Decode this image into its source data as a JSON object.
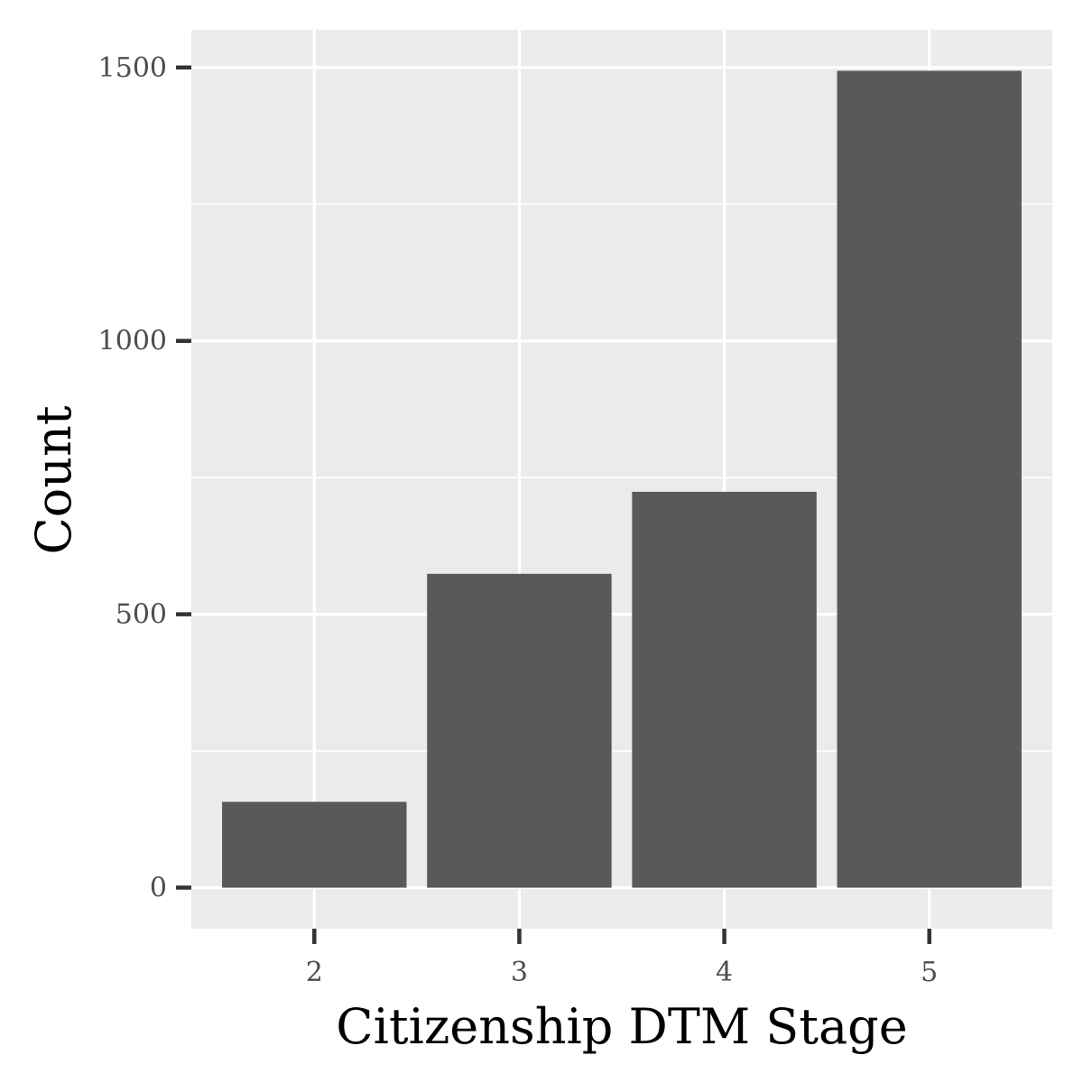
{
  "chart_data": {
    "type": "bar",
    "categories": [
      "2",
      "3",
      "4",
      "5"
    ],
    "values": [
      157,
      574,
      724,
      1494
    ],
    "xlabel": "Citizenship DTM Stage",
    "ylabel": "Count",
    "ylim": [
      -75,
      1569
    ],
    "yticks": [
      0,
      500,
      1000,
      1500
    ],
    "ytick_labels": [
      "0",
      "500",
      "1000",
      "1500"
    ],
    "grid": true,
    "legend": "none",
    "colors": {
      "bar": "#595959",
      "panel": "#ebebeb",
      "grid": "#ffffff",
      "tick": "#333333"
    }
  }
}
